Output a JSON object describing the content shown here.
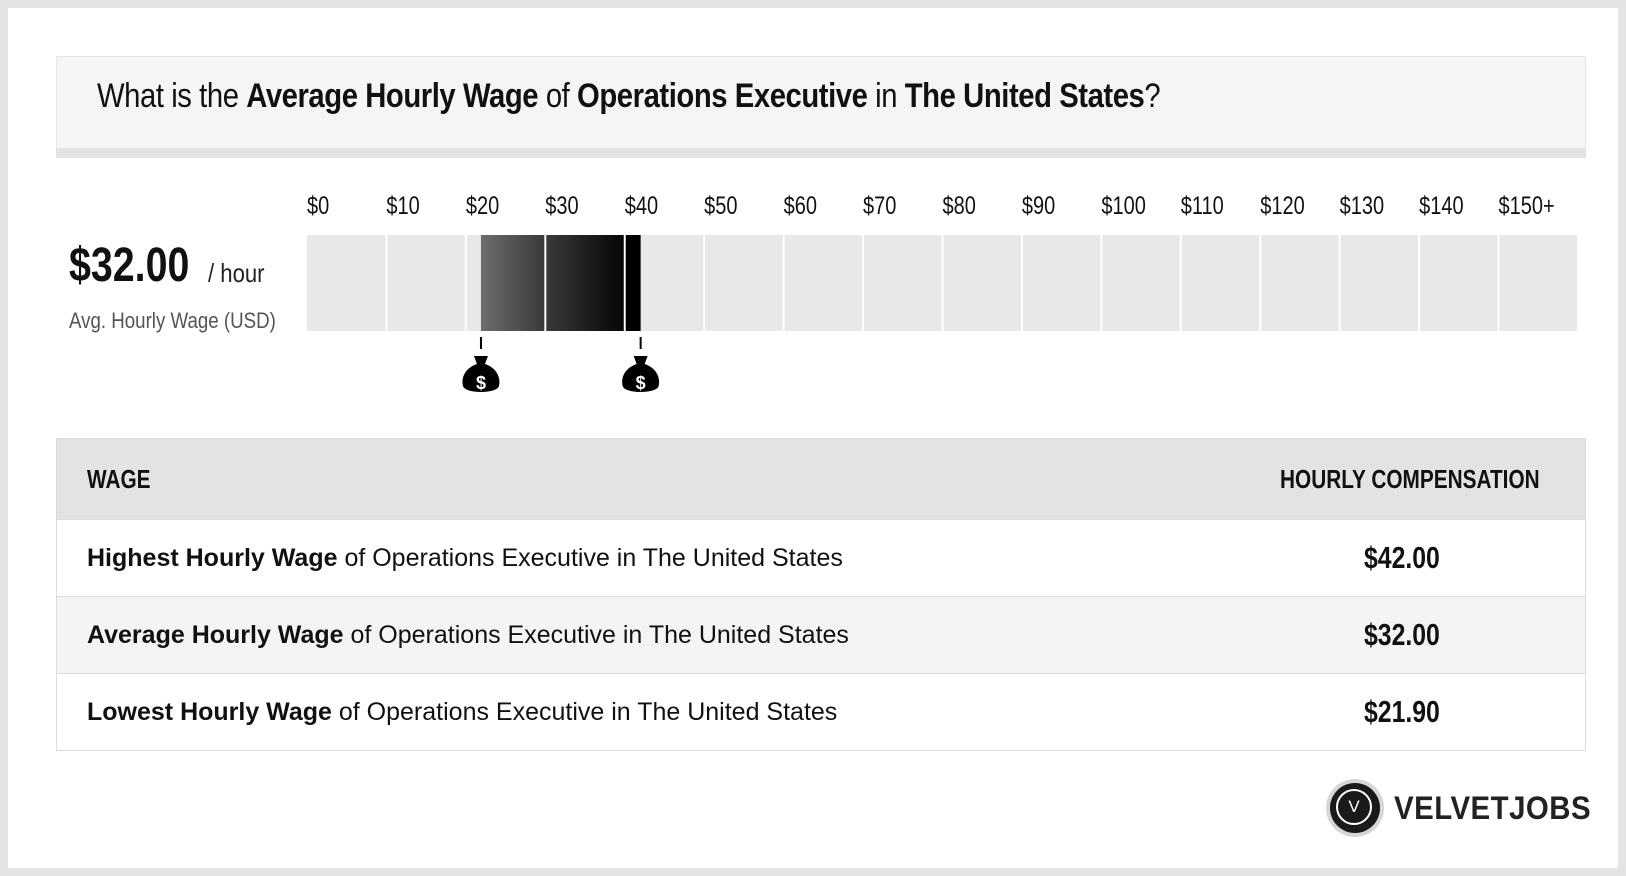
{
  "title": {
    "prefix": "What is the ",
    "metric": "Average Hourly Wage",
    "of": " of ",
    "job": "Operations Executive",
    "in": " in ",
    "location": "The United States",
    "suffix": "?"
  },
  "summary": {
    "value": "$32.00",
    "unit": "/ hour",
    "caption": "Avg. Hourly Wage (USD)"
  },
  "chart_data": {
    "type": "bar",
    "tick_labels": [
      "$0",
      "$10",
      "$20",
      "$30",
      "$40",
      "$50",
      "$60",
      "$70",
      "$80",
      "$90",
      "$100",
      "$110",
      "$120",
      "$130",
      "$140",
      "$150+"
    ],
    "xlim": [
      0,
      150
    ],
    "range_low": 21.9,
    "range_high": 42.0,
    "average": 32.0,
    "markers": [
      {
        "value": 21.9,
        "icon": "money-bag-icon"
      },
      {
        "value": 42.0,
        "icon": "money-bag-icon"
      }
    ],
    "colors": {
      "empty": "#e8e8e8",
      "dark": "#000000",
      "light": "#6a6a6a"
    }
  },
  "table": {
    "headers": {
      "wage": "WAGE",
      "comp": "HOURLY COMPENSATION"
    },
    "rows": [
      {
        "bold": "Highest Hourly Wage",
        "rest": " of Operations Executive in The United States",
        "value": "$42.00"
      },
      {
        "bold": "Average Hourly Wage",
        "rest": " of Operations Executive in The United States",
        "value": "$32.00"
      },
      {
        "bold": "Lowest Hourly Wage",
        "rest": " of Operations Executive in The United States",
        "value": "$21.90"
      }
    ]
  },
  "brand": {
    "logo_letter": "V",
    "name": "VELVETJOBS"
  }
}
